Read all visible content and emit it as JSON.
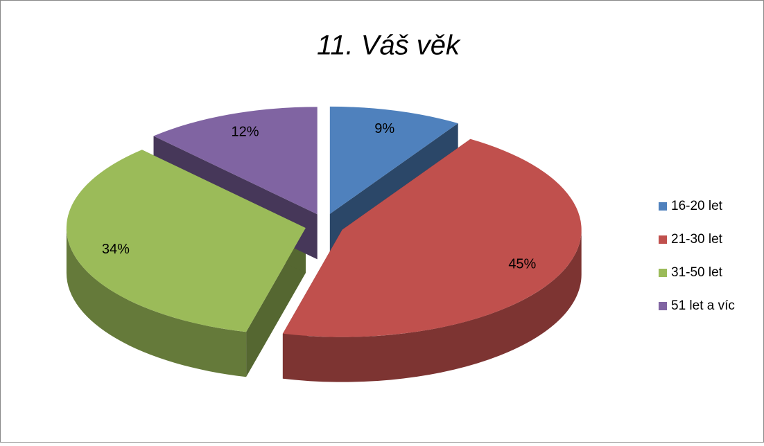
{
  "chart_data": {
    "type": "pie",
    "title": "11. Váš věk",
    "categories": [
      "16-20 let",
      "21-30 let",
      "31-50 let",
      "51 let a víc"
    ],
    "values": [
      9,
      45,
      34,
      12
    ],
    "value_labels": [
      "9%",
      "45%",
      "34%",
      "12%"
    ],
    "colors": [
      "#4f81bd",
      "#c0504d",
      "#9bbb59",
      "#8064a2"
    ],
    "legend": "right"
  }
}
